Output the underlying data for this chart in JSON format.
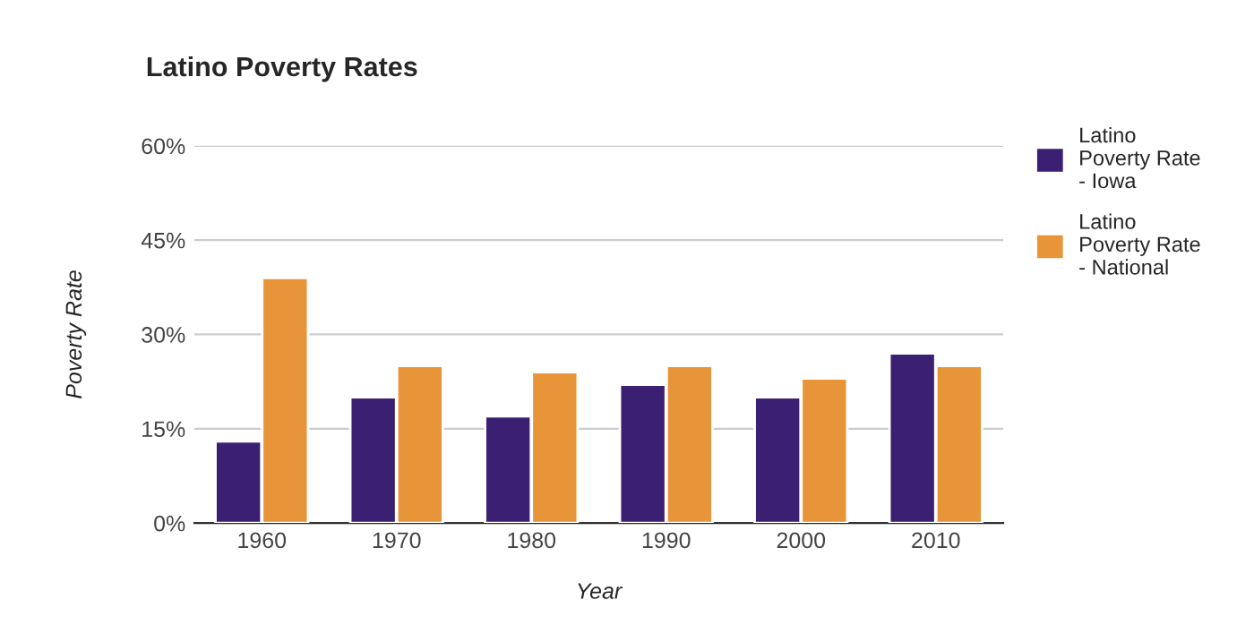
{
  "chart_data": {
    "type": "bar",
    "title": "Latino Poverty Rates",
    "xlabel": "Year",
    "ylabel": "Poverty Rate",
    "categories": [
      "1960",
      "1970",
      "1980",
      "1990",
      "2000",
      "2010"
    ],
    "series": [
      {
        "name": "Latino Poverty Rate - Iowa",
        "color": "#3a1f73",
        "values": [
          13,
          20,
          17,
          22,
          20,
          27
        ]
      },
      {
        "name": "Latino Poverty Rate - National",
        "color": "#e8953a",
        "values": [
          39,
          25,
          24,
          25,
          23,
          25
        ]
      }
    ],
    "ylim": [
      0,
      60
    ],
    "yticks": [
      {
        "value": 0,
        "label": "0%"
      },
      {
        "value": 15,
        "label": "15%"
      },
      {
        "value": 30,
        "label": "30%"
      },
      {
        "value": 45,
        "label": "45%"
      },
      {
        "value": 60,
        "label": "60%"
      }
    ],
    "grid": "y",
    "legend": "right"
  }
}
